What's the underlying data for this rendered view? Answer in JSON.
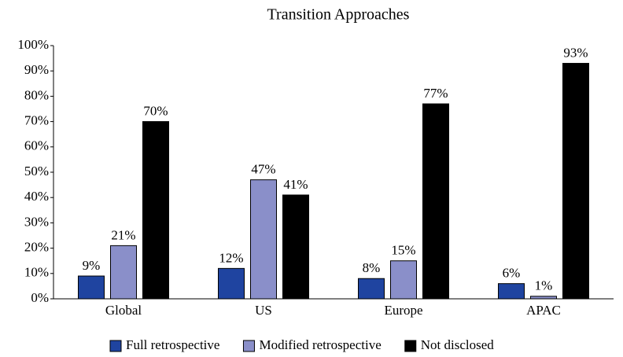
{
  "chart_data": {
    "type": "bar",
    "title": "Transition Approaches",
    "categories": [
      "Global",
      "US",
      "Europe",
      "APAC"
    ],
    "series": [
      {
        "name": "Full retrospective",
        "color": "#1f44a0",
        "values": [
          9,
          12,
          8,
          6
        ],
        "value_labels": [
          "9%",
          "12%",
          "8%",
          "6%"
        ]
      },
      {
        "name": "Modified retrospective",
        "color": "#8a8fc9",
        "values": [
          21,
          47,
          15,
          1
        ],
        "value_labels": [
          "21%",
          "47%",
          "15%",
          "1%"
        ]
      },
      {
        "name": "Not disclosed",
        "color": "#000000",
        "values": [
          70,
          41,
          77,
          93
        ],
        "value_labels": [
          "70%",
          "41%",
          "77%",
          "93%"
        ]
      }
    ],
    "ylim": [
      0,
      100
    ],
    "yticks": [
      {
        "value": 0,
        "label": "0%"
      },
      {
        "value": 10,
        "label": "10%"
      },
      {
        "value": 20,
        "label": "20%"
      },
      {
        "value": 30,
        "label": "30%"
      },
      {
        "value": 40,
        "label": "40%"
      },
      {
        "value": 50,
        "label": "50%"
      },
      {
        "value": 60,
        "label": "60%"
      },
      {
        "value": 70,
        "label": "70%"
      },
      {
        "value": 80,
        "label": "80%"
      },
      {
        "value": 90,
        "label": "90%"
      },
      {
        "value": 100,
        "label": "100%"
      }
    ],
    "legend": "bottom",
    "grid": false
  }
}
